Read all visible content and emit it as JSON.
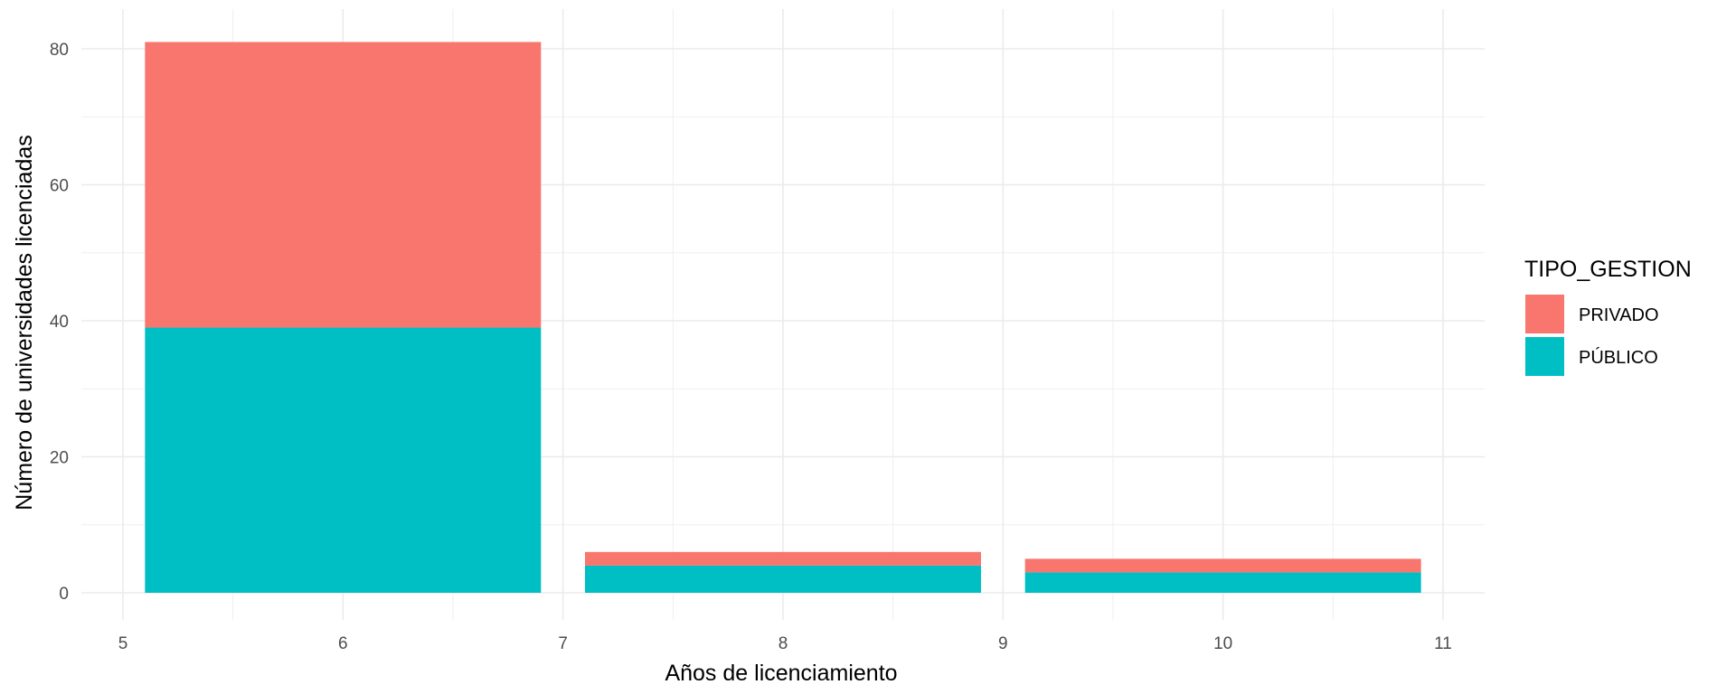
{
  "chart_data": {
    "type": "bar",
    "stacked": true,
    "x": [
      6,
      8,
      10
    ],
    "xlabel": "Años de licenciamiento",
    "ylabel": "Número de universidades licenciadas",
    "xlim": [
      5,
      11
    ],
    "ylim": [
      0,
      80
    ],
    "x_ticks": [
      5,
      6,
      7,
      8,
      9,
      10,
      11
    ],
    "y_ticks": [
      0,
      20,
      40,
      60,
      80
    ],
    "grid": true,
    "legend_title": "TIPO_GESTION",
    "legend_position": "right",
    "series": [
      {
        "name": "PÚBLICO",
        "values": [
          39,
          4,
          3
        ],
        "color": "#00BFC4"
      },
      {
        "name": "PRIVADO",
        "values": [
          42,
          2,
          2
        ],
        "color": "#F8766D"
      }
    ],
    "legend_order": [
      "PRIVADO",
      "PÚBLICO"
    ]
  }
}
